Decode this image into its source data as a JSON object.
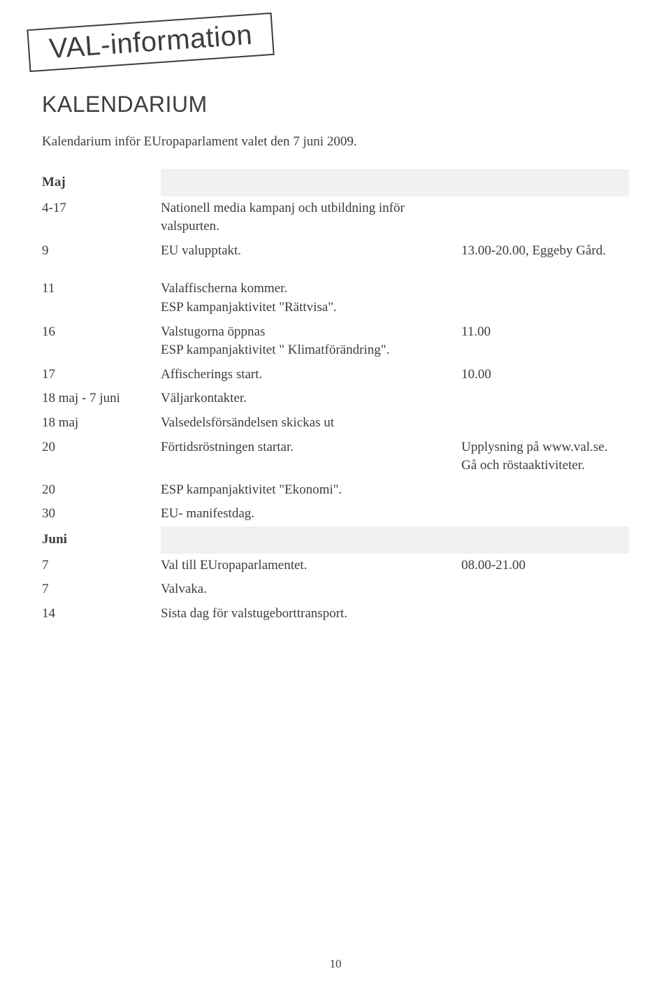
{
  "stamp": "VAL-information",
  "heading": "KALENDARIUM",
  "intro": "Kalendarium inför EUropaparlament valet den 7 juni 2009.",
  "months": {
    "maj": "Maj",
    "juni": "Juni"
  },
  "rows_maj": [
    {
      "date": "4-17",
      "desc": "Nationell media kampanj och utbildning inför valspurten.",
      "note": ""
    },
    {
      "date": "9",
      "desc": "EU valupptakt.",
      "note": "13.00-20.00, Eggeby Gård."
    },
    {
      "date": "11",
      "desc": "Valaffischerna kommer.\nESP kampanjaktivitet \"Rättvisa\".",
      "note": ""
    },
    {
      "date": "16",
      "desc": "Valstugorna öppnas\nESP kampanjaktivitet \" Klimatförändring\".",
      "note": "11.00"
    },
    {
      "date": "17",
      "desc": "Affischerings start.",
      "note": "10.00"
    },
    {
      "date": "18 maj - 7 juni",
      "desc": "Väljarkontakter.",
      "note": ""
    },
    {
      "date": "18 maj",
      "desc": "Valsedelsförsändelsen skickas ut",
      "note": ""
    },
    {
      "date": "20",
      "desc": "Förtidsröstningen startar.",
      "note": "Upplysning på www.val.se.\nGå och röstaaktiviteter."
    },
    {
      "date": "20",
      "desc": "ESP kampanjaktivitet \"Ekonomi\".",
      "note": ""
    },
    {
      "date": "30",
      "desc": "EU- manifestdag.",
      "note": ""
    }
  ],
  "rows_juni": [
    {
      "date": "7",
      "desc": "Val till EUropaparlamentet.",
      "note": "08.00-21.00"
    },
    {
      "date": "7",
      "desc": "Valvaka.",
      "note": ""
    },
    {
      "date": "14",
      "desc": "Sista dag för valstugeborttransport.",
      "note": ""
    }
  ],
  "page_number": "10",
  "colors": {
    "text": "#3d3d3d",
    "background": "#ffffff",
    "shade": "#f1f0f3"
  },
  "typography": {
    "stamp_fontsize": 40,
    "heading_fontsize": 32,
    "body_fontsize": 19
  }
}
